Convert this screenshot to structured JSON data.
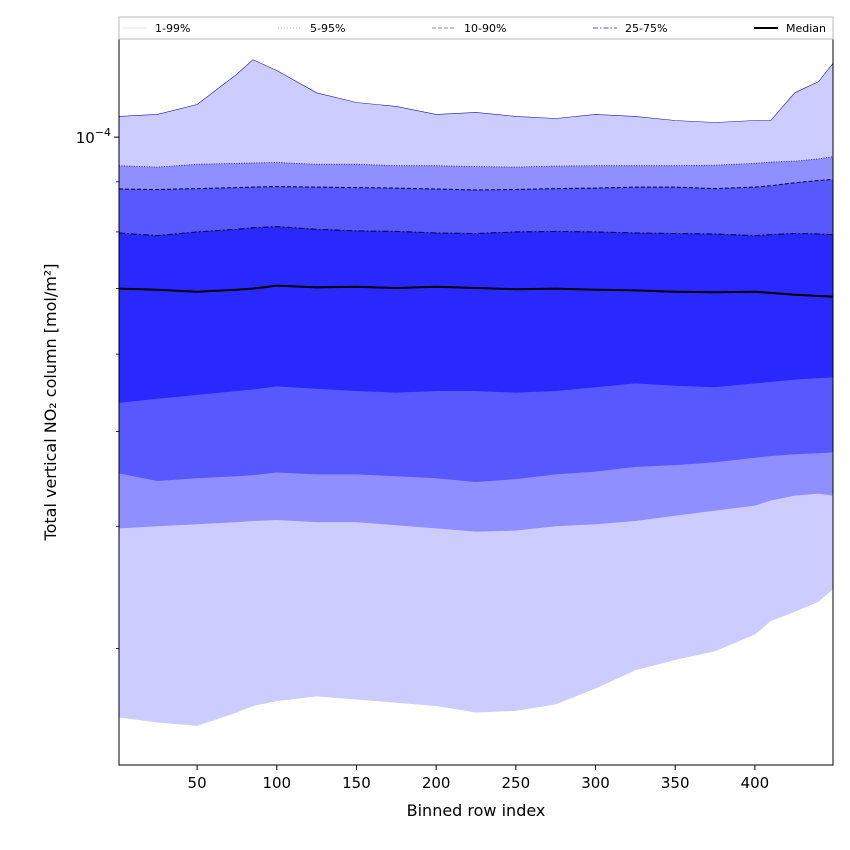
{
  "chart_data": {
    "type": "area",
    "xlabel": "Binned row index",
    "ylabel": "Total vertical NO₂ column [mol/m²]",
    "y_scale": "log",
    "xlim": [
      1,
      449
    ],
    "ylim": [
      2.28e-05,
      0.000126
    ],
    "x_ticks": [
      50,
      100,
      150,
      200,
      250,
      300,
      350,
      400
    ],
    "y_major_ticks": [
      {
        "value": 0.0001,
        "base": "10",
        "exp": "−4"
      }
    ],
    "y_minor_ticks": [
      3e-05,
      4e-05,
      5e-05,
      6e-05,
      7e-05,
      8e-05,
      9e-05
    ],
    "legend_position": "top",
    "legend": [
      {
        "label": "1-99%",
        "color": "#e0e0f6",
        "style": "solid"
      },
      {
        "label": "5-95%",
        "color": "#a8a8e8",
        "style": "dotted"
      },
      {
        "label": "10-90%",
        "color": "#8080ea",
        "style": "dashed"
      },
      {
        "label": "25-75%",
        "color": "#5050e0",
        "style": "dashdot"
      },
      {
        "label": "Median",
        "color": "#000000",
        "style": "solid-bold"
      }
    ],
    "x": [
      1,
      25,
      50,
      75,
      85,
      100,
      125,
      150,
      175,
      200,
      225,
      250,
      275,
      300,
      325,
      350,
      375,
      400,
      410,
      425,
      440,
      449
    ],
    "series": [
      {
        "name": "p1",
        "values": [
          2.55e-05,
          2.52e-05,
          2.5e-05,
          2.58e-05,
          2.62e-05,
          2.65e-05,
          2.68e-05,
          2.66e-05,
          2.64e-05,
          2.62e-05,
          2.58e-05,
          2.59e-05,
          2.63e-05,
          2.73e-05,
          2.85e-05,
          2.92e-05,
          2.98e-05,
          3.1e-05,
          3.2e-05,
          3.27e-05,
          3.35e-05,
          3.45e-05
        ]
      },
      {
        "name": "p5",
        "values": [
          3.98e-05,
          4e-05,
          4.02e-05,
          4.04e-05,
          4.05e-05,
          4.06e-05,
          4.04e-05,
          4.04e-05,
          4.01e-05,
          3.98e-05,
          3.95e-05,
          3.96e-05,
          4e-05,
          4.02e-05,
          4.05e-05,
          4.1e-05,
          4.15e-05,
          4.2e-05,
          4.25e-05,
          4.3e-05,
          4.32e-05,
          4.3e-05
        ]
      },
      {
        "name": "p10",
        "values": [
          4.53e-05,
          4.45e-05,
          4.48e-05,
          4.5e-05,
          4.51e-05,
          4.54e-05,
          4.52e-05,
          4.52e-05,
          4.5e-05,
          4.48e-05,
          4.44e-05,
          4.47e-05,
          4.52e-05,
          4.55e-05,
          4.6e-05,
          4.62e-05,
          4.65e-05,
          4.7e-05,
          4.72e-05,
          4.74e-05,
          4.75e-05,
          4.76e-05
        ]
      },
      {
        "name": "p25",
        "values": [
          5.35e-05,
          5.4e-05,
          5.45e-05,
          5.5e-05,
          5.52e-05,
          5.56e-05,
          5.53e-05,
          5.5e-05,
          5.48e-05,
          5.5e-05,
          5.5e-05,
          5.48e-05,
          5.5e-05,
          5.55e-05,
          5.6e-05,
          5.57e-05,
          5.55e-05,
          5.6e-05,
          5.62e-05,
          5.65e-05,
          5.67e-05,
          5.68e-05
        ]
      },
      {
        "name": "Median",
        "values": [
          7e-05,
          6.98e-05,
          6.95e-05,
          6.98e-05,
          7e-05,
          7.05e-05,
          7.02e-05,
          7.03e-05,
          7.01e-05,
          7.03e-05,
          7.01e-05,
          6.99e-05,
          7e-05,
          6.98e-05,
          6.97e-05,
          6.95e-05,
          6.94e-05,
          6.95e-05,
          6.93e-05,
          6.9e-05,
          6.88e-05,
          6.87e-05
        ]
      },
      {
        "name": "p75",
        "values": [
          7.98e-05,
          7.93e-05,
          8e-05,
          8.05e-05,
          8.08e-05,
          8.1e-05,
          8.05e-05,
          8.02e-05,
          8.01e-05,
          7.98e-05,
          7.97e-05,
          8e-05,
          8.01e-05,
          8e-05,
          7.98e-05,
          7.97e-05,
          7.96e-05,
          7.93e-05,
          7.95e-05,
          7.97e-05,
          7.96e-05,
          7.95e-05
        ]
      },
      {
        "name": "p90",
        "values": [
          8.85e-05,
          8.84e-05,
          8.86e-05,
          8.88e-05,
          8.89e-05,
          8.9e-05,
          8.89e-05,
          8.88e-05,
          8.87e-05,
          8.85e-05,
          8.83e-05,
          8.84e-05,
          8.86e-05,
          8.87e-05,
          8.89e-05,
          8.89e-05,
          8.86e-05,
          8.89e-05,
          8.92e-05,
          8.98e-05,
          9.03e-05,
          9.05e-05
        ]
      },
      {
        "name": "p95",
        "values": [
          9.35e-05,
          9.32e-05,
          9.38e-05,
          9.4e-05,
          9.41e-05,
          9.42e-05,
          9.38e-05,
          9.38e-05,
          9.35e-05,
          9.35e-05,
          9.33e-05,
          9.32e-05,
          9.34e-05,
          9.35e-05,
          9.35e-05,
          9.35e-05,
          9.36e-05,
          9.4e-05,
          9.43e-05,
          9.45e-05,
          9.5e-05,
          9.55e-05
        ]
      },
      {
        "name": "p99",
        "values": [
          0.000105,
          0.0001055,
          0.000108,
          0.000116,
          0.00012,
          0.000117,
          0.000111,
          0.0001085,
          0.0001075,
          0.0001055,
          0.000106,
          0.000105,
          0.0001045,
          0.0001055,
          0.000105,
          0.000104,
          0.0001035,
          0.000104,
          0.000104,
          0.000111,
          0.000114,
          0.000119
        ]
      }
    ]
  }
}
